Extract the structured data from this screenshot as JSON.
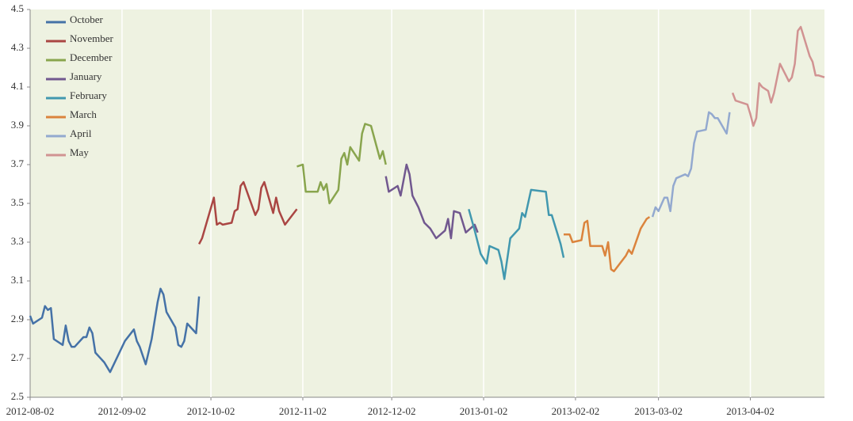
{
  "chart_data": {
    "type": "line",
    "xlim": [
      "2012-08-02",
      "2013-04-27"
    ],
    "xticks": [
      "2012-08-02",
      "2012-09-02",
      "2012-10-02",
      "2012-11-02",
      "2012-12-02",
      "2013-01-02",
      "2013-02-02",
      "2013-03-02",
      "2013-04-02"
    ],
    "ylim": [
      2.5,
      4.5
    ],
    "yticks": [
      2.5,
      2.7,
      2.9,
      3.1,
      3.3,
      3.5,
      3.7,
      3.9,
      4.1,
      4.3,
      4.5
    ],
    "grid": true,
    "legend": "top-left",
    "series": [
      {
        "name": "October",
        "color": "#4572a7",
        "x": [
          "2012-08-02",
          "2012-08-03",
          "2012-08-06",
          "2012-08-07",
          "2012-08-08",
          "2012-08-09",
          "2012-08-10",
          "2012-08-13",
          "2012-08-14",
          "2012-08-15",
          "2012-08-16",
          "2012-08-17",
          "2012-08-20",
          "2012-08-21",
          "2012-08-22",
          "2012-08-23",
          "2012-08-24",
          "2012-08-27",
          "2012-08-29",
          "2012-09-03",
          "2012-09-06",
          "2012-09-07",
          "2012-09-08",
          "2012-09-10",
          "2012-09-12",
          "2012-09-14",
          "2012-09-15",
          "2012-09-16",
          "2012-09-17",
          "2012-09-20",
          "2012-09-21",
          "2012-09-22",
          "2012-09-23",
          "2012-09-24",
          "2012-09-27",
          "2012-09-28"
        ],
        "values": [
          2.92,
          2.88,
          2.91,
          2.97,
          2.95,
          2.96,
          2.8,
          2.77,
          2.87,
          2.79,
          2.76,
          2.76,
          2.81,
          2.81,
          2.86,
          2.83,
          2.73,
          2.68,
          2.63,
          2.79,
          2.85,
          2.79,
          2.76,
          2.67,
          2.8,
          2.99,
          3.06,
          3.03,
          2.94,
          2.86,
          2.77,
          2.76,
          2.79,
          2.88,
          2.83,
          3.02
        ]
      },
      {
        "name": "November",
        "color": "#aa4643",
        "x": [
          "2012-09-28",
          "2012-09-29",
          "2012-10-03",
          "2012-10-04",
          "2012-10-05",
          "2012-10-06",
          "2012-10-09",
          "2012-10-10",
          "2012-10-11",
          "2012-10-12",
          "2012-10-13",
          "2012-10-17",
          "2012-10-18",
          "2012-10-19",
          "2012-10-20",
          "2012-10-23",
          "2012-10-24",
          "2012-10-25",
          "2012-10-27",
          "2012-10-31"
        ],
        "values": [
          3.29,
          3.32,
          3.53,
          3.39,
          3.4,
          3.39,
          3.4,
          3.46,
          3.47,
          3.59,
          3.61,
          3.44,
          3.47,
          3.58,
          3.61,
          3.45,
          3.53,
          3.46,
          3.39,
          3.47
        ]
      },
      {
        "name": "December",
        "color": "#89a54e",
        "x": [
          "2012-10-31",
          "2012-11-02",
          "2012-11-03",
          "2012-11-07",
          "2012-11-08",
          "2012-11-09",
          "2012-11-10",
          "2012-11-11",
          "2012-11-14",
          "2012-11-15",
          "2012-11-16",
          "2012-11-17",
          "2012-11-18",
          "2012-11-21",
          "2012-11-22",
          "2012-11-23",
          "2012-11-25",
          "2012-11-28",
          "2012-11-29",
          "2012-11-30"
        ],
        "values": [
          3.69,
          3.7,
          3.56,
          3.56,
          3.61,
          3.57,
          3.6,
          3.5,
          3.57,
          3.73,
          3.76,
          3.7,
          3.79,
          3.72,
          3.86,
          3.91,
          3.9,
          3.73,
          3.77,
          3.7
        ]
      },
      {
        "name": "January",
        "color": "#71588f",
        "x": [
          "2012-11-30",
          "2012-12-01",
          "2012-12-04",
          "2012-12-05",
          "2012-12-07",
          "2012-12-08",
          "2012-12-09",
          "2012-12-11",
          "2012-12-13",
          "2012-12-15",
          "2012-12-17",
          "2012-12-20",
          "2012-12-21",
          "2012-12-22",
          "2012-12-23",
          "2012-12-25",
          "2012-12-27",
          "2012-12-30",
          "2012-12-31"
        ],
        "values": [
          3.64,
          3.56,
          3.59,
          3.54,
          3.7,
          3.65,
          3.54,
          3.48,
          3.4,
          3.37,
          3.32,
          3.36,
          3.42,
          3.32,
          3.46,
          3.45,
          3.35,
          3.39,
          3.35
        ]
      },
      {
        "name": "February",
        "color": "#4198af",
        "x": [
          "2012-12-28",
          "2012-12-30",
          "2013-01-01",
          "2013-01-03",
          "2013-01-04",
          "2013-01-07",
          "2013-01-08",
          "2013-01-09",
          "2013-01-11",
          "2013-01-14",
          "2013-01-15",
          "2013-01-16",
          "2013-01-18",
          "2013-01-23",
          "2013-01-24",
          "2013-01-25",
          "2013-01-28",
          "2013-01-29"
        ],
        "values": [
          3.47,
          3.36,
          3.24,
          3.19,
          3.28,
          3.26,
          3.2,
          3.11,
          3.32,
          3.37,
          3.45,
          3.43,
          3.57,
          3.56,
          3.44,
          3.44,
          3.29,
          3.22
        ]
      },
      {
        "name": "March",
        "color": "#db843d",
        "x": [
          "2013-01-29",
          "2013-01-31",
          "2013-02-01",
          "2013-02-04",
          "2013-02-05",
          "2013-02-06",
          "2013-02-07",
          "2013-02-10",
          "2013-02-11",
          "2013-02-12",
          "2013-02-13",
          "2013-02-14",
          "2013-02-15",
          "2013-02-19",
          "2013-02-20",
          "2013-02-21",
          "2013-02-24",
          "2013-02-26",
          "2013-02-27"
        ],
        "values": [
          3.34,
          3.34,
          3.3,
          3.31,
          3.4,
          3.41,
          3.28,
          3.28,
          3.28,
          3.23,
          3.3,
          3.16,
          3.15,
          3.23,
          3.26,
          3.24,
          3.37,
          3.42,
          3.43
        ]
      },
      {
        "name": "April",
        "color": "#93a9cf",
        "x": [
          "2013-02-28",
          "2013-03-01",
          "2013-03-02",
          "2013-03-04",
          "2013-03-05",
          "2013-03-06",
          "2013-03-07",
          "2013-03-08",
          "2013-03-11",
          "2013-03-12",
          "2013-03-13",
          "2013-03-14",
          "2013-03-15",
          "2013-03-18",
          "2013-03-19",
          "2013-03-20",
          "2013-03-21",
          "2013-03-22",
          "2013-03-25",
          "2013-03-26"
        ],
        "values": [
          3.43,
          3.48,
          3.46,
          3.53,
          3.53,
          3.46,
          3.59,
          3.63,
          3.65,
          3.64,
          3.68,
          3.81,
          3.87,
          3.88,
          3.97,
          3.96,
          3.94,
          3.94,
          3.86,
          3.97
        ]
      },
      {
        "name": "May",
        "color": "#d19392",
        "x": [
          "2013-03-27",
          "2013-03-28",
          "2013-04-01",
          "2013-04-02",
          "2013-04-03",
          "2013-04-04",
          "2013-04-05",
          "2013-04-06",
          "2013-04-08",
          "2013-04-09",
          "2013-04-10",
          "2013-04-12",
          "2013-04-14",
          "2013-04-15",
          "2013-04-16",
          "2013-04-17",
          "2013-04-18",
          "2013-04-19",
          "2013-04-22",
          "2013-04-23",
          "2013-04-24",
          "2013-04-25",
          "2013-04-27"
        ],
        "values": [
          4.07,
          4.03,
          4.01,
          3.96,
          3.9,
          3.94,
          4.12,
          4.1,
          4.08,
          4.02,
          4.07,
          4.22,
          4.16,
          4.13,
          4.15,
          4.22,
          4.39,
          4.41,
          4.26,
          4.23,
          4.16,
          4.16,
          4.15
        ]
      }
    ]
  }
}
